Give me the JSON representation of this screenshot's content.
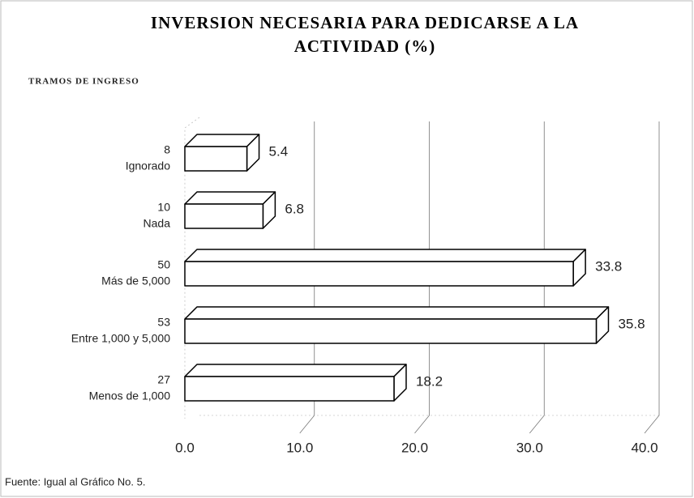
{
  "chart_data": {
    "type": "bar3d",
    "title": "INVERSION NECESARIA PARA DEDICARSE A LA ACTIVIDAD (%)",
    "y_axis_label": "TRAMOS DE INGRESO",
    "categories": [
      "Ignorado",
      "Nada",
      "Más de 5,000",
      "Entre 1,000 y 5,000",
      "Menos de 1,000"
    ],
    "counts": [
      8,
      10,
      50,
      53,
      27
    ],
    "values": [
      5.4,
      6.8,
      33.8,
      35.8,
      18.2
    ],
    "xlim": [
      0,
      40
    ],
    "xticks": [
      {
        "value": 0,
        "label": "0.0"
      },
      {
        "value": 10,
        "label": "10.0"
      },
      {
        "value": 20,
        "label": "20.0"
      },
      {
        "value": 30,
        "label": "30.0"
      },
      {
        "value": 40,
        "label": "40.0"
      }
    ],
    "grid": true,
    "color": "#ffffff",
    "source": "Fuente: Igual al Gráfico No. 5."
  }
}
